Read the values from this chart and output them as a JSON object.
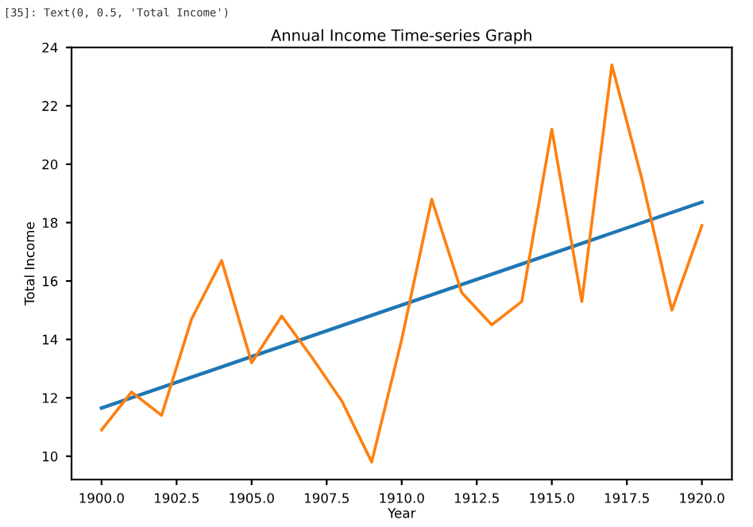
{
  "chart_data": {
    "type": "line",
    "title": "Annual Income Time-series Graph",
    "xlabel": "Year",
    "ylabel": "Total Income",
    "annotations": [
      "[35]: Text(0, 0.5, 'Total Income')"
    ],
    "x": [
      1900,
      1901,
      1902,
      1903,
      1904,
      1905,
      1906,
      1907,
      1908,
      1909,
      1910,
      1911,
      1912,
      1913,
      1914,
      1915,
      1916,
      1917,
      1918,
      1919,
      1920
    ],
    "series": [
      {
        "color": "#1f77b4",
        "x": [
          1900,
          1920
        ],
        "values": [
          11.65,
          18.7
        ]
      },
      {
        "color": "#ff7f0e",
        "values": [
          10.9,
          12.2,
          11.4,
          14.7,
          16.7,
          13.2,
          14.8,
          13.4,
          11.9,
          9.8,
          14.0,
          18.8,
          15.6,
          14.5,
          15.3,
          21.2,
          15.3,
          23.4,
          19.5,
          15.0,
          17.9
        ]
      }
    ],
    "xlim": [
      1899,
      1921
    ],
    "ylim": [
      9.2,
      24
    ],
    "xticks": [
      {
        "value": 1900,
        "label": "1900.0"
      },
      {
        "value": 1902.5,
        "label": "1902.5"
      },
      {
        "value": 1905,
        "label": "1905.0"
      },
      {
        "value": 1907.5,
        "label": "1907.5"
      },
      {
        "value": 1910,
        "label": "1910.0"
      },
      {
        "value": 1912.5,
        "label": "1912.5"
      },
      {
        "value": 1915,
        "label": "1915.0"
      },
      {
        "value": 1917.5,
        "label": "1917.5"
      },
      {
        "value": 1920,
        "label": "1920.0"
      }
    ],
    "yticks": [
      10,
      12,
      14,
      16,
      18,
      20,
      22,
      24
    ],
    "grid": false,
    "legend": false
  }
}
